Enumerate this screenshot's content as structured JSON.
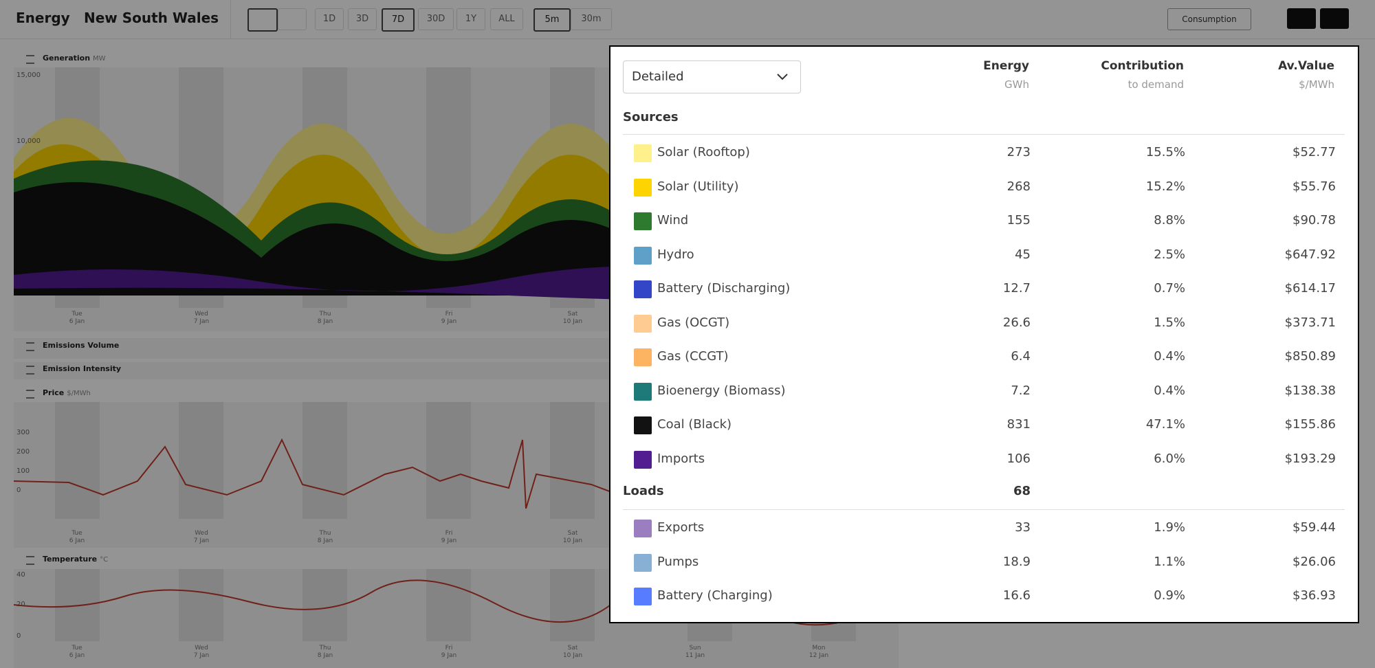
{
  "toolbar": {
    "title": "Energy",
    "region": "New South Wales",
    "ranges": [
      "1D",
      "3D",
      "7D",
      "30D",
      "1Y",
      "ALL"
    ],
    "intervals": [
      "5m",
      "30m"
    ],
    "view": "Consumption"
  },
  "charts": {
    "generation": {
      "title": "Generation",
      "unit": "MW",
      "yticks": [
        "15,000",
        "10,000"
      ]
    },
    "emissions_volume": {
      "title": "Emissions Volume"
    },
    "emission_intensity": {
      "title": "Emission Intensity"
    },
    "price": {
      "title": "Price",
      "unit": "$/MWh",
      "yticks": [
        "300",
        "200",
        "100",
        "0"
      ]
    },
    "temperature": {
      "title": "Temperature",
      "unit": "°C",
      "yticks": [
        "40",
        "20",
        "0"
      ]
    },
    "days": [
      {
        "day": "Tue",
        "date": "6 Jan"
      },
      {
        "day": "Wed",
        "date": "7 Jan"
      },
      {
        "day": "Thu",
        "date": "8 Jan"
      },
      {
        "day": "Fri",
        "date": "9 Jan"
      },
      {
        "day": "Sat",
        "date": "10 Jan"
      },
      {
        "day": "Sun",
        "date": "11 Jan"
      },
      {
        "day": "Mon",
        "date": "12 Jan"
      }
    ]
  },
  "panel": {
    "dropdown": "Detailed",
    "headers": [
      {
        "title": "Energy",
        "sub": "GWh"
      },
      {
        "title": "Contribution",
        "sub": "to demand"
      },
      {
        "title": "Av.Value",
        "sub": "$/MWh"
      }
    ],
    "sources": {
      "title": "Sources",
      "rows": [
        {
          "name": "Solar (Rooftop)",
          "color": "#fef08a",
          "energy": "273",
          "contribution": "15.5%",
          "value": "$52.77"
        },
        {
          "name": "Solar (Utility)",
          "color": "#fdd400",
          "energy": "268",
          "contribution": "15.2%",
          "value": "$55.76"
        },
        {
          "name": "Wind",
          "color": "#2e7a2e",
          "energy": "155",
          "contribution": "8.8%",
          "value": "$90.78"
        },
        {
          "name": "Hydro",
          "color": "#5fa0c8",
          "energy": "45",
          "contribution": "2.5%",
          "value": "$647.92"
        },
        {
          "name": "Battery (Discharging)",
          "color": "#3346c8",
          "energy": "12.7",
          "contribution": "0.7%",
          "value": "$614.17"
        },
        {
          "name": "Gas (OCGT)",
          "color": "#fecb92",
          "energy": "26.6",
          "contribution": "1.5%",
          "value": "$373.71"
        },
        {
          "name": "Gas (CCGT)",
          "color": "#fdb462",
          "energy": "6.4",
          "contribution": "0.4%",
          "value": "$850.89"
        },
        {
          "name": "Bioenergy (Biomass)",
          "color": "#1d7a78",
          "energy": "7.2",
          "contribution": "0.4%",
          "value": "$138.38"
        },
        {
          "name": "Coal (Black)",
          "color": "#121212",
          "energy": "831",
          "contribution": "47.1%",
          "value": "$155.86"
        },
        {
          "name": "Imports",
          "color": "#521d91",
          "energy": "106",
          "contribution": "6.0%",
          "value": "$193.29"
        }
      ]
    },
    "loads": {
      "title": "Loads",
      "total": "68",
      "rows": [
        {
          "name": "Exports",
          "color": "#9a7ec0",
          "energy": "33",
          "contribution": "1.9%",
          "value": "$59.44"
        },
        {
          "name": "Pumps",
          "color": "#88b0d5",
          "energy": "18.9",
          "contribution": "1.1%",
          "value": "$26.06"
        },
        {
          "name": "Battery (Charging)",
          "color": "#577cff",
          "energy": "16.6",
          "contribution": "0.9%",
          "value": "$36.93"
        }
      ]
    }
  }
}
